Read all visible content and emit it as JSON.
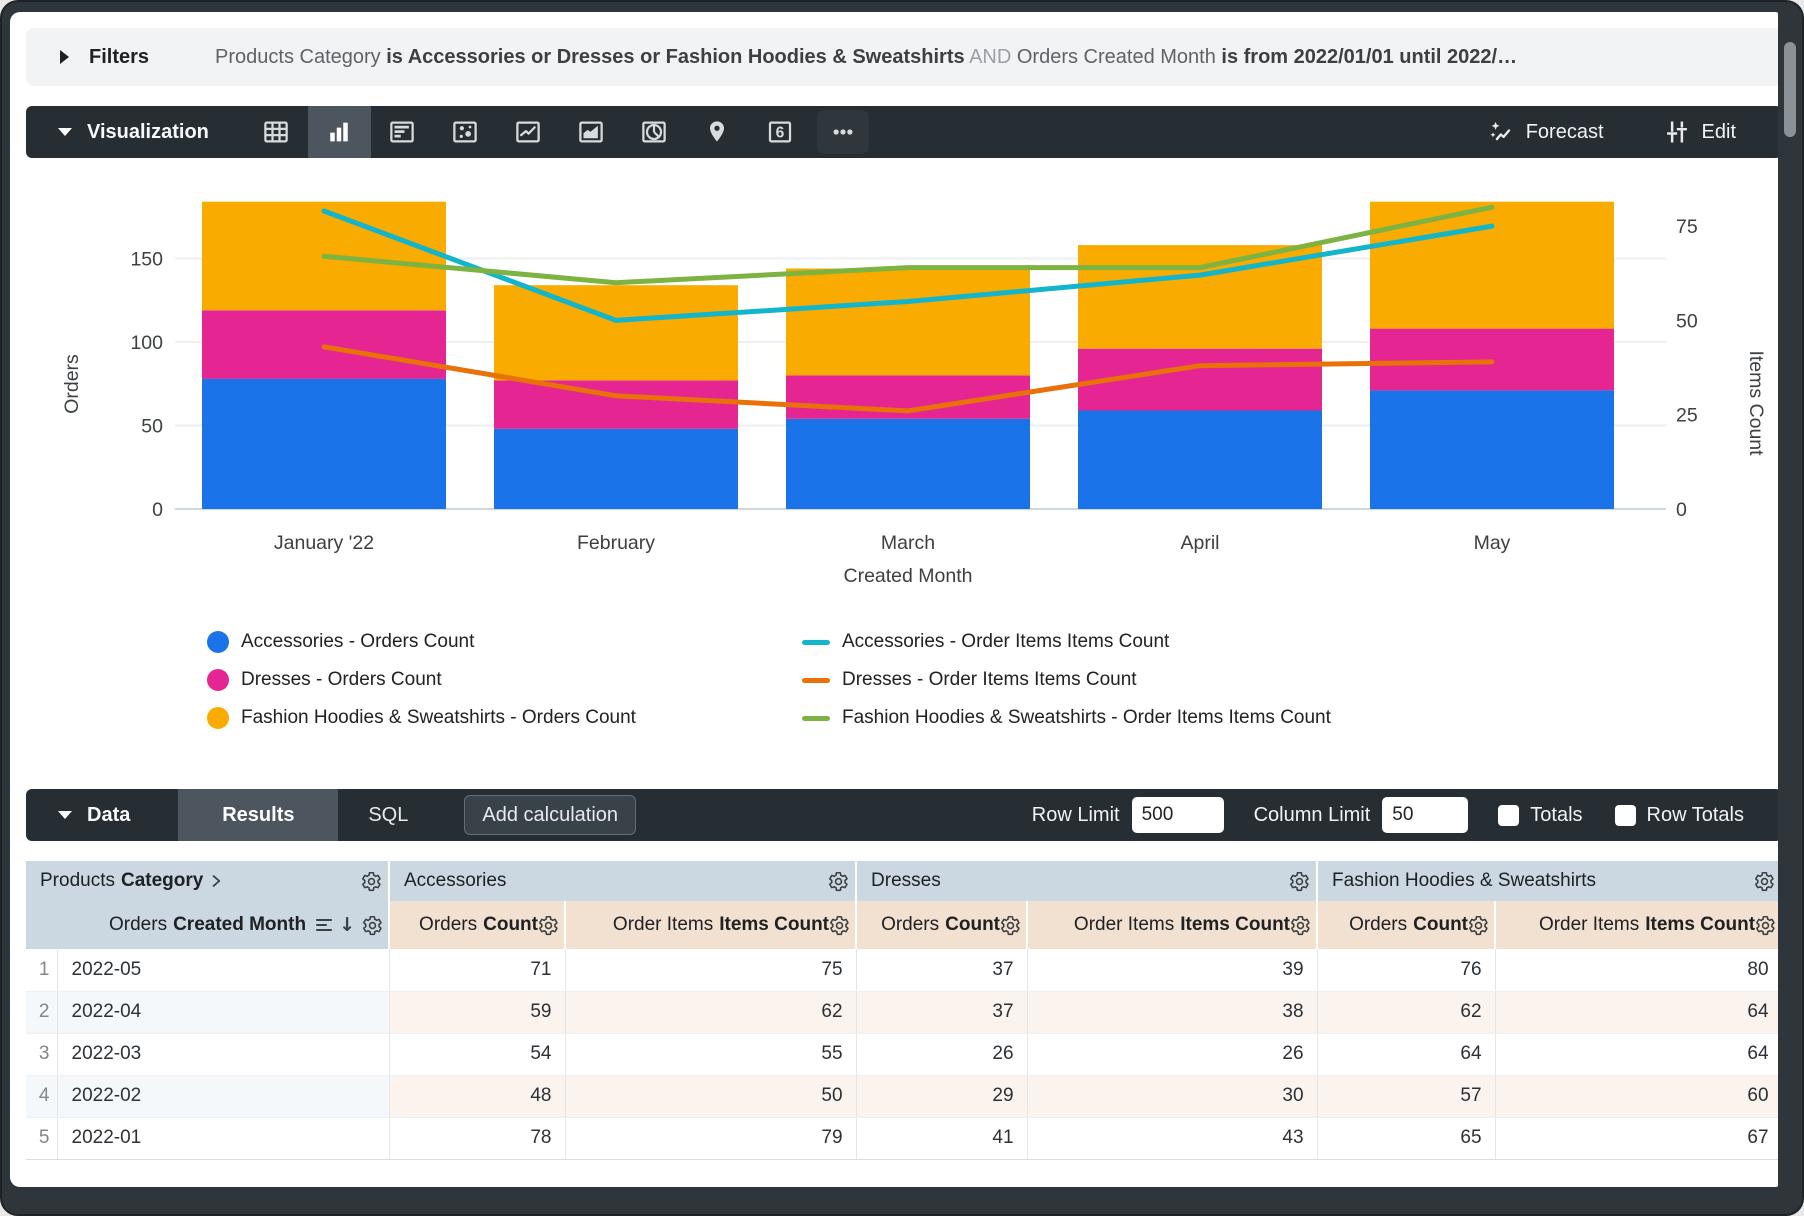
{
  "filters_bar": {
    "title": "Filters",
    "segments": [
      {
        "text": "Products Category ",
        "style": "dim"
      },
      {
        "text": "is Accessories or Dresses or Fashion Hoodies & Sweatshirts",
        "style": "bold"
      },
      {
        "text": " AND ",
        "style": "faint"
      },
      {
        "text": "Orders Created Month ",
        "style": "dim"
      },
      {
        "text": "is from 2022/01/01 until 2022/…",
        "style": "bold"
      }
    ]
  },
  "viz_bar": {
    "title": "Visualization",
    "single_value_glyph": "6",
    "icons": [
      {
        "name": "table-chart-icon",
        "selected": false
      },
      {
        "name": "column-chart-icon",
        "selected": true
      },
      {
        "name": "bar-chart-icon",
        "selected": false
      },
      {
        "name": "scatter-chart-icon",
        "selected": false
      },
      {
        "name": "line-chart-icon",
        "selected": false
      },
      {
        "name": "area-chart-icon",
        "selected": false
      },
      {
        "name": "pie-chart-icon",
        "selected": false
      },
      {
        "name": "map-chart-icon",
        "selected": false
      },
      {
        "name": "single-value-icon",
        "selected": false
      },
      {
        "name": "more-options-icon",
        "selected": false
      }
    ],
    "forecast_label": "Forecast",
    "edit_label": "Edit"
  },
  "chart_data": {
    "type": "combo-stacked-column-line",
    "categories": [
      "January '22",
      "February",
      "March",
      "April",
      "May"
    ],
    "bar_series": [
      {
        "name": "Accessories - Orders Count",
        "color": "#1A73E8",
        "values": [
          78,
          48,
          54,
          59,
          71
        ]
      },
      {
        "name": "Dresses - Orders Count",
        "color": "#E52592",
        "values": [
          41,
          29,
          26,
          37,
          37
        ]
      },
      {
        "name": "Fashion Hoodies & Sweatshirts - Orders Count",
        "color": "#F9AB00",
        "values": [
          65,
          57,
          64,
          62,
          76
        ]
      }
    ],
    "line_series": [
      {
        "name": "Accessories - Order Items Items Count",
        "color": "#12B5CB",
        "values": [
          79,
          50,
          55,
          62,
          75
        ]
      },
      {
        "name": "Dresses - Order Items Items Count",
        "color": "#E8710A",
        "values": [
          43,
          30,
          26,
          38,
          39
        ]
      },
      {
        "name": "Fashion Hoodies & Sweatshirts - Order Items Items Count",
        "color": "#7CB342",
        "values": [
          67,
          60,
          64,
          64,
          80
        ]
      }
    ],
    "xlabel": "Created Month",
    "y_left": {
      "label": "Orders",
      "ticks": [
        0,
        50,
        100,
        150
      ]
    },
    "y_right": {
      "label": "Items Count",
      "ticks": [
        0,
        25,
        50,
        75
      ]
    },
    "grid": true,
    "legend_position": "bottom"
  },
  "data_bar": {
    "title": "Data",
    "tabs": [
      {
        "label": "Results",
        "active": true
      },
      {
        "label": "SQL",
        "active": false
      }
    ],
    "add_calculation_label": "Add calculation",
    "row_limit_label": "Row Limit",
    "row_limit_value": "500",
    "column_limit_label": "Column Limit",
    "column_limit_value": "50",
    "totals_label": "Totals",
    "totals_checked": false,
    "row_totals_label": "Row Totals",
    "row_totals_checked": false
  },
  "table": {
    "corner": {
      "plain": "Products",
      "bold": "Category"
    },
    "dimension": {
      "plain": "Orders",
      "bold": "Created Month"
    },
    "groups": [
      {
        "label": "Accessories"
      },
      {
        "label": "Dresses"
      },
      {
        "label": "Fashion Hoodies & Sweatshirts"
      }
    ],
    "measures": [
      {
        "plain": "Orders",
        "bold": "Count"
      },
      {
        "plain": "Order Items",
        "bold": "Items Count"
      }
    ],
    "rows": [
      {
        "n": "1",
        "month": "2022-05",
        "values": [
          71,
          75,
          37,
          39,
          76,
          80
        ]
      },
      {
        "n": "2",
        "month": "2022-04",
        "values": [
          59,
          62,
          37,
          38,
          62,
          64
        ]
      },
      {
        "n": "3",
        "month": "2022-03",
        "values": [
          54,
          55,
          26,
          26,
          64,
          64
        ]
      },
      {
        "n": "4",
        "month": "2022-02",
        "values": [
          48,
          50,
          29,
          30,
          57,
          60
        ]
      },
      {
        "n": "5",
        "month": "2022-01",
        "values": [
          78,
          79,
          41,
          43,
          65,
          67
        ]
      }
    ]
  }
}
